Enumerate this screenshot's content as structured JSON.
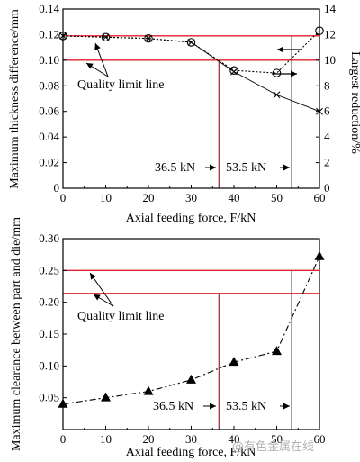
{
  "colors": {
    "axis": "#000000",
    "limit_line": "#e0212b",
    "watermark": "#b3b3b3"
  },
  "watermark": "@有色金属在线",
  "chart_data": [
    {
      "type": "line",
      "xlabel": "Axial feeding force, F/kN",
      "ylabel": "Maximum thickness difference/mm",
      "ylabel_right": "Largest reduction/%",
      "x_ticks": [
        "0",
        "10",
        "20",
        "30",
        "40",
        "50",
        "60"
      ],
      "y_ticks": [
        "0",
        "0.02",
        "0.04",
        "0.06",
        "0.08",
        "0.10",
        "0.12",
        "0.14"
      ],
      "y2_ticks": [
        "0",
        "2",
        "4",
        "6",
        "8",
        "10",
        "12",
        "14"
      ],
      "xlim": [
        0,
        60
      ],
      "ylim": [
        0,
        0.14
      ],
      "y2lim": [
        0,
        14
      ],
      "series": [
        {
          "marker": "circle",
          "axis": "left",
          "x": [
            0,
            10,
            20,
            30,
            40,
            50,
            60
          ],
          "y": [
            0.119,
            0.118,
            0.117,
            0.114,
            0.092,
            0.09,
            0.123
          ]
        },
        {
          "marker": "cross",
          "axis": "right",
          "x": [
            0,
            10,
            20,
            30,
            40,
            50,
            60
          ],
          "y": [
            11.9,
            11.8,
            11.7,
            11.4,
            9.1,
            7.3,
            6.0
          ]
        }
      ],
      "quality_limit_y": [
        0.119,
        0.1
      ],
      "limit_forces": [
        36.5,
        53.5
      ],
      "annotations": {
        "quality_limit": "Quality limit line",
        "force_a": "36.5 kN",
        "force_b": "53.5 kN"
      }
    },
    {
      "type": "line",
      "xlabel": "Axial feeding force, F/kN",
      "ylabel": "Maximum clearance between part and die/mm",
      "x_ticks": [
        "0",
        "10",
        "20",
        "30",
        "40",
        "50",
        "60"
      ],
      "y_ticks": [
        "0.05",
        "0.10",
        "0.15",
        "0.20",
        "0.25",
        "0.30"
      ],
      "xlim": [
        0,
        60
      ],
      "ylim": [
        0.0,
        0.3
      ],
      "series": [
        {
          "marker": "triangle",
          "x": [
            0,
            10,
            20,
            30,
            40,
            50,
            60
          ],
          "y": [
            0.04,
            0.05,
            0.06,
            0.078,
            0.106,
            0.123,
            0.272
          ]
        }
      ],
      "quality_limit_y": [
        0.25,
        0.214
      ],
      "limit_forces": [
        36.5,
        53.5
      ],
      "annotations": {
        "quality_limit": "Quality limit line",
        "force_a": "36.5 kN",
        "force_b": "53.5 kN"
      }
    }
  ]
}
